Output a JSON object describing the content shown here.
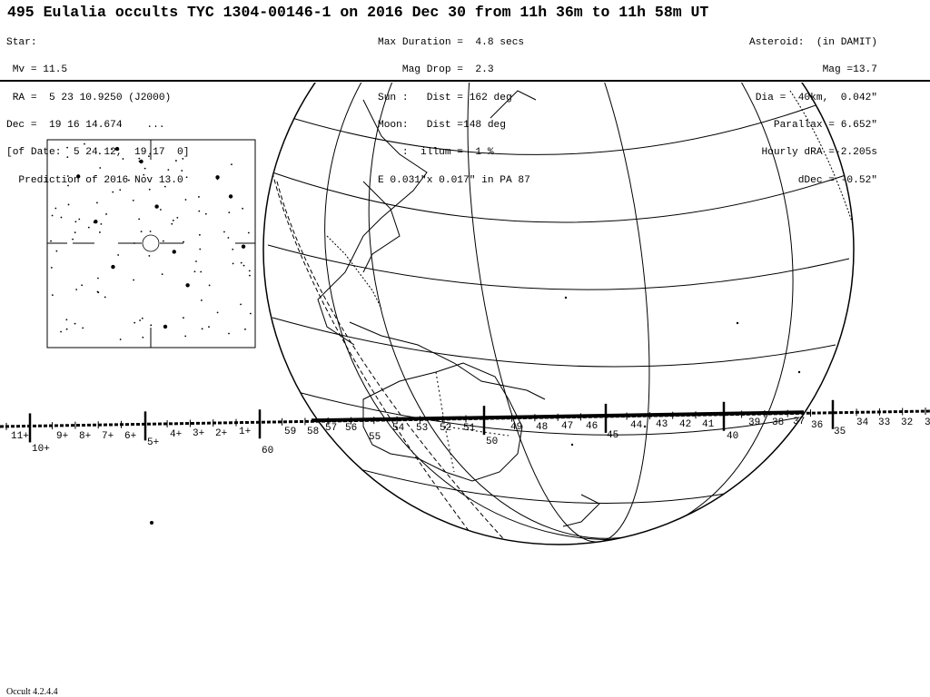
{
  "title": "495 Eulalia occults TYC 1304-00146-1 on 2016 Dec 30 from 11h 36m to 11h 58m UT",
  "star": [
    "Star:",
    " Mv = 11.5",
    " RA =  5 23 10.9250 (J2000)",
    "Dec =  19 16 14.674    ...",
    "[of Date:  5 24 12,  19 17  0]",
    "  Prediction of 2016 Nov 13.0"
  ],
  "event": [
    "Max Duration =  4.8 secs",
    "    Mag Drop =  2.3",
    "Sun :   Dist = 162 deg",
    "Moon:   Dist =148 deg",
    "    :  illum =  1 %",
    "E 0.031\"x 0.017\" in PA 87"
  ],
  "asteroid": [
    "Asteroid:  (in DAMIT)",
    "Mag =13.7",
    "Dia =  40km,  0.042\"",
    "Parallax = 6.652\"",
    "Hourly dRA =-2.205s",
    "dDec = -0.52\""
  ],
  "path_labels": [
    "11+",
    "10+",
    "9+",
    "8+",
    "7+",
    "6+",
    "5+",
    "4+",
    "3+",
    "2+",
    "1+",
    "60",
    "59",
    "58",
    "57",
    "56",
    "55",
    "54",
    "53",
    "52",
    "51",
    "50",
    "49",
    "48",
    "47",
    "46",
    "45",
    "44",
    "43",
    "42",
    "41",
    "40",
    "39",
    "38",
    "37",
    "36",
    "35",
    "34",
    "33",
    "32",
    "3"
  ],
  "version": "Occult 4.2.4.4"
}
